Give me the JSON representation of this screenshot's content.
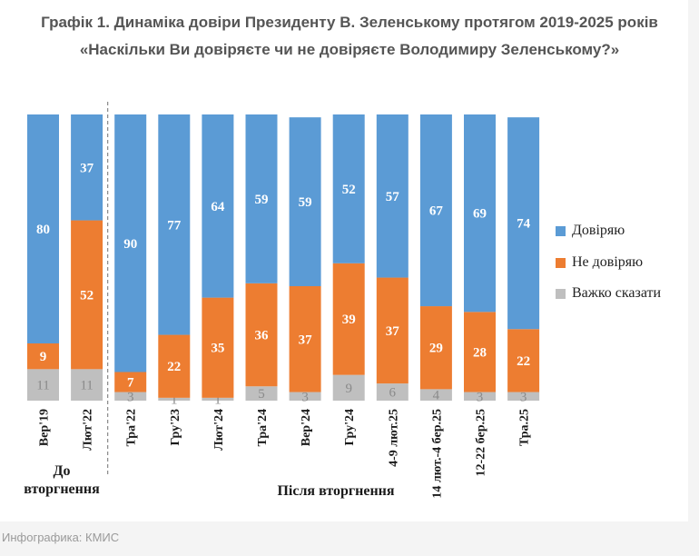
{
  "title": "Графік 1. Динаміка довіри Президенту В. Зеленському протягом 2019-2025 років",
  "subtitle": "«Наскільки Ви довіряєте чи не довіряєте Володимиру Зеленському?»",
  "source": "Инфографика: КМИС",
  "colors": {
    "trust": "#5b9bd5",
    "distrust": "#ed7d31",
    "hard": "#bfbfbf"
  },
  "groups": {
    "before": "До вторгнення",
    "after": "Після вторгнення"
  },
  "chart_data": {
    "type": "bar",
    "stacked": true,
    "categories": [
      "Вер'19",
      "Лют'22",
      "Тра'22",
      "Гру'23",
      "Лют'24",
      "Тра'24",
      "Вер'24",
      "Гру'24",
      "4-9 лют.25",
      "14 лют.-4 бер.25",
      "12-22 бер.25",
      "Тра.25"
    ],
    "series": [
      {
        "name": "Довіряю",
        "values": [
          80,
          37,
          90,
          77,
          64,
          59,
          59,
          52,
          57,
          67,
          69,
          74
        ]
      },
      {
        "name": "Не довіряю",
        "values": [
          9,
          52,
          7,
          22,
          35,
          36,
          37,
          39,
          37,
          29,
          28,
          22
        ]
      },
      {
        "name": "Важко сказати",
        "values": [
          11,
          11,
          3,
          1,
          1,
          5,
          3,
          9,
          6,
          4,
          3,
          3
        ]
      }
    ],
    "ylim": [
      0,
      100
    ],
    "legend": "right",
    "grid": false
  }
}
